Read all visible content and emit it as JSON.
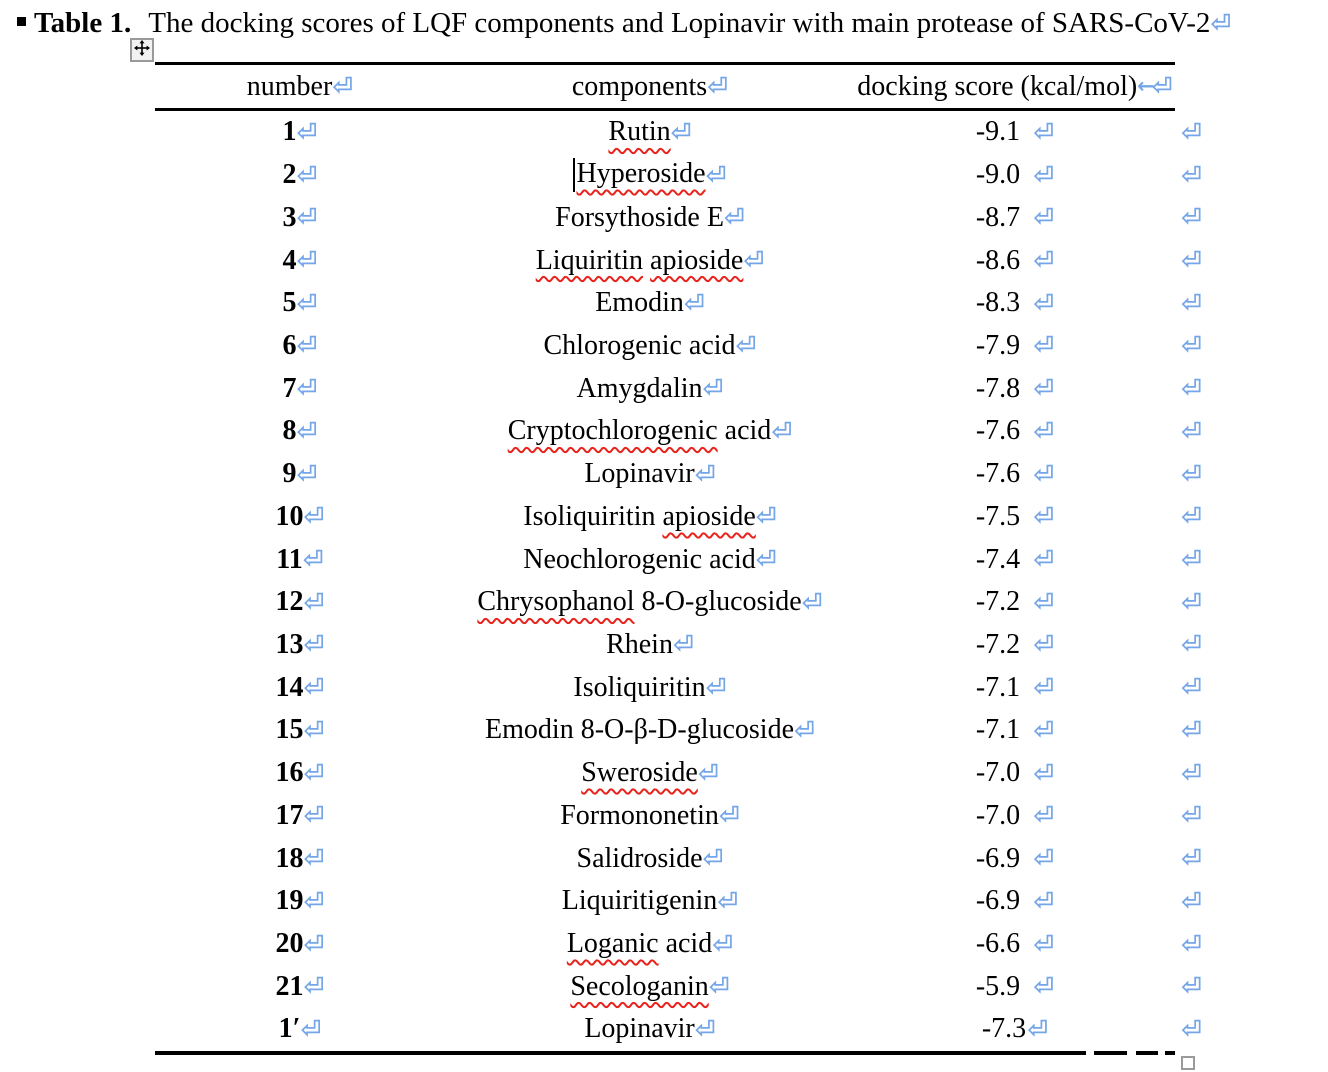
{
  "title": {
    "bullet": "square-bullet",
    "label_bold": "Table 1.",
    "text": "The docking scores of LQF components and Lopinavir with main protease of SARS-CoV-2"
  },
  "marks": {
    "paragraph_mark": "⏎",
    "tab_mark": "←",
    "mark_color": "#74a6e8",
    "squiggle_color": "#e8231c"
  },
  "table": {
    "headers": [
      {
        "label": "number"
      },
      {
        "label": "components"
      },
      {
        "label": "docking score (kcal/mol)"
      }
    ],
    "rows": [
      {
        "number": "1",
        "component": "Rutin",
        "squiggle": [
          "Rutin"
        ],
        "caret": false,
        "score": "-9.1",
        "score_space": true
      },
      {
        "number": "2",
        "component": "Hyperoside",
        "squiggle": [
          "Hyperoside"
        ],
        "caret": true,
        "score": "-9.0",
        "score_space": true
      },
      {
        "number": "3",
        "component": "Forsythoside E",
        "squiggle": [],
        "caret": false,
        "score": "-8.7",
        "score_space": true
      },
      {
        "number": "4",
        "component": "Liquiritin apioside",
        "squiggle": [
          "Liquiritin",
          "apioside"
        ],
        "caret": false,
        "score": "-8.6",
        "score_space": true
      },
      {
        "number": "5",
        "component": "Emodin",
        "squiggle": [],
        "caret": false,
        "score": "-8.3",
        "score_space": true
      },
      {
        "number": "6",
        "component": "Chlorogenic acid",
        "squiggle": [],
        "caret": false,
        "score": "-7.9",
        "score_space": true
      },
      {
        "number": "7",
        "component": "Amygdalin",
        "squiggle": [],
        "caret": false,
        "score": "-7.8",
        "score_space": true
      },
      {
        "number": "8",
        "component": "Cryptochlorogenic acid",
        "squiggle": [
          "Cryptochlorogenic"
        ],
        "caret": false,
        "score": "-7.6",
        "score_space": true
      },
      {
        "number": "9",
        "component": "Lopinavir",
        "squiggle": [],
        "caret": false,
        "score": "-7.6",
        "score_space": true
      },
      {
        "number": "10",
        "component": "Isoliquiritin apioside",
        "squiggle": [
          "apioside"
        ],
        "caret": false,
        "score": "-7.5",
        "score_space": true
      },
      {
        "number": "11",
        "component": "Neochlorogenic acid",
        "squiggle": [],
        "caret": false,
        "score": "-7.4",
        "score_space": true
      },
      {
        "number": "12",
        "component": "Chrysophanol 8-O-glucoside",
        "squiggle": [
          "Chrysophanol"
        ],
        "caret": false,
        "score": "-7.2",
        "score_space": true
      },
      {
        "number": "13",
        "component": "Rhein",
        "squiggle": [],
        "caret": false,
        "score": "-7.2",
        "score_space": true
      },
      {
        "number": "14",
        "component": "Isoliquiritin",
        "squiggle": [],
        "caret": false,
        "score": "-7.1",
        "score_space": true
      },
      {
        "number": "15",
        "component": "Emodin 8-O-β-D-glucoside",
        "squiggle": [],
        "caret": false,
        "score": "-7.1",
        "score_space": true
      },
      {
        "number": "16",
        "component": "Sweroside",
        "squiggle": [
          "Sweroside"
        ],
        "caret": false,
        "score": "-7.0",
        "score_space": true
      },
      {
        "number": "17",
        "component": "Formononetin",
        "squiggle": [],
        "caret": false,
        "score": "-7.0",
        "score_space": true
      },
      {
        "number": "18",
        "component": "Salidroside",
        "squiggle": [],
        "caret": false,
        "score": "-6.9",
        "score_space": true
      },
      {
        "number": "19",
        "component": "Liquiritigenin",
        "squiggle": [],
        "caret": false,
        "score": "-6.9",
        "score_space": true
      },
      {
        "number": "20",
        "component": "Loganic acid",
        "squiggle": [
          "Loganic"
        ],
        "caret": false,
        "score": "-6.6",
        "score_space": true
      },
      {
        "number": "21",
        "component": "Secologanin",
        "squiggle": [
          "Secologanin"
        ],
        "caret": false,
        "score": "-5.9",
        "score_space": true
      },
      {
        "number": "1′",
        "component": "Lopinavir",
        "squiggle": [],
        "caret": false,
        "score": "-7.3",
        "score_space": false
      }
    ]
  }
}
